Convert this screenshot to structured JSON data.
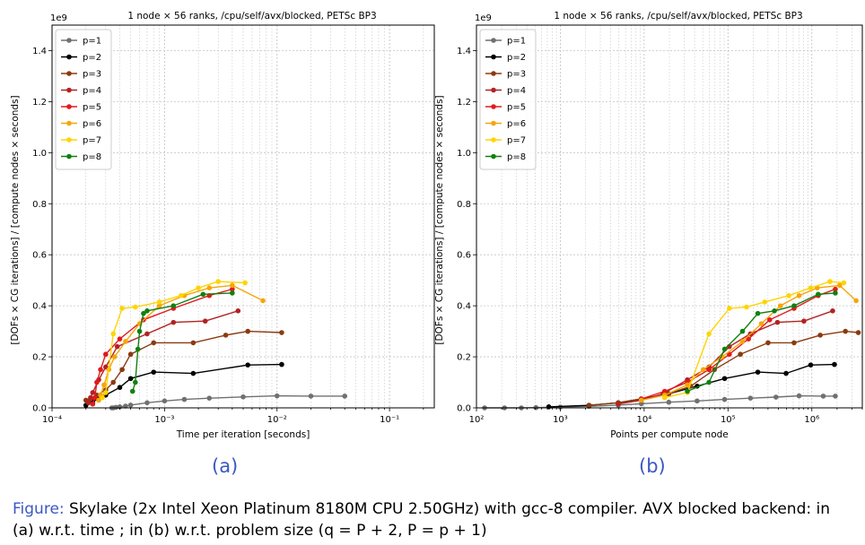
{
  "caption": {
    "label": "Figure:",
    "text": "Skylake (2x Intel Xeon Platinum 8180M CPU 2.50GHz) with gcc-8 compiler. AVX blocked backend: in (a) w.r.t. time ; in (b) w.r.t. problem size (q = P + 2, P = p + 1)"
  },
  "subfigure_labels": [
    "(a)",
    "(b)"
  ],
  "colors": {
    "p=1": "#707070",
    "p=2": "#000000",
    "p=3": "#8b3a0f",
    "p=4": "#b22222",
    "p=5": "#e31a1c",
    "p=6": "#f5a60a",
    "p=7": "#ffd400",
    "p=8": "#108010"
  },
  "chart_data": [
    {
      "type": "line",
      "title": "1 node × 56 ranks, /cpu/self/avx/blocked, PETSc BP3",
      "xlabel": "Time per iteration [seconds]",
      "ylabel": "[DOFs × CG iterations] / [compute nodes × seconds]",
      "y_offset_label": "1e9",
      "x_scale": "log",
      "xlim": [
        0.0001,
        0.25
      ],
      "ylim": [
        0,
        1.5
      ],
      "x_ticks": [
        0.0001,
        0.001,
        0.01,
        0.1
      ],
      "x_tick_labels": [
        "10⁻⁴",
        "10⁻³",
        "10⁻²",
        "10⁻¹"
      ],
      "y_ticks": [
        0,
        0.2,
        0.4,
        0.6,
        0.8,
        1.0,
        1.2,
        1.4
      ],
      "y_tick_labels": [
        "0.0",
        "0.2",
        "0.4",
        "0.6",
        "0.8",
        "1.0",
        "1.2",
        "1.4"
      ],
      "grid": true,
      "legend": "upper-left",
      "series": [
        {
          "name": "p=1",
          "x": [
            0.00034,
            0.00035,
            0.00037,
            0.0004,
            0.00045,
            0.0005,
            0.0007,
            0.001,
            0.0015,
            0.0025,
            0.005,
            0.01,
            0.02,
            0.04
          ],
          "y": [
            0.0,
            0.0,
            0.002,
            0.004,
            0.007,
            0.011,
            0.02,
            0.027,
            0.033,
            0.038,
            0.043,
            0.047,
            0.046,
            0.046
          ]
        },
        {
          "name": "p=2",
          "x": [
            0.0002,
            0.00021,
            0.00023,
            0.00026,
            0.0003,
            0.0004,
            0.0005,
            0.0008,
            0.0018,
            0.0055,
            0.011
          ],
          "y": [
            0.01,
            0.02,
            0.025,
            0.035,
            0.05,
            0.08,
            0.115,
            0.14,
            0.135,
            0.168,
            0.17
          ]
        },
        {
          "name": "p=3",
          "x": [
            0.0002,
            0.00022,
            0.00025,
            0.0003,
            0.00035,
            0.00042,
            0.0005,
            0.0008,
            0.0018,
            0.0035,
            0.0055,
            0.011
          ],
          "y": [
            0.03,
            0.035,
            0.05,
            0.07,
            0.1,
            0.15,
            0.21,
            0.255,
            0.255,
            0.285,
            0.3,
            0.295
          ]
        },
        {
          "name": "p=4",
          "x": [
            0.00021,
            0.00022,
            0.00023,
            0.00026,
            0.0003,
            0.00038,
            0.0007,
            0.0012,
            0.0023,
            0.0045
          ],
          "y": [
            0.02,
            0.04,
            0.06,
            0.11,
            0.16,
            0.24,
            0.29,
            0.335,
            0.34,
            0.38
          ]
        },
        {
          "name": "p=5",
          "x": [
            0.00023,
            0.00024,
            0.00025,
            0.00027,
            0.0003,
            0.0004,
            0.00065,
            0.0012,
            0.0025,
            0.004
          ],
          "y": [
            0.015,
            0.04,
            0.1,
            0.15,
            0.21,
            0.27,
            0.345,
            0.39,
            0.44,
            0.465
          ]
        },
        {
          "name": "p=6",
          "x": [
            0.00026,
            0.00027,
            0.00029,
            0.00032,
            0.00036,
            0.00045,
            0.0006,
            0.0009,
            0.0015,
            0.0025,
            0.004,
            0.0075
          ],
          "y": [
            0.03,
            0.05,
            0.09,
            0.15,
            0.2,
            0.26,
            0.33,
            0.4,
            0.44,
            0.47,
            0.48,
            0.42
          ]
        },
        {
          "name": "p=7",
          "x": [
            0.00028,
            0.0003,
            0.00035,
            0.00042,
            0.00055,
            0.0009,
            0.0014,
            0.002,
            0.003,
            0.0052
          ],
          "y": [
            0.04,
            0.06,
            0.29,
            0.39,
            0.395,
            0.415,
            0.44,
            0.47,
            0.495,
            0.49
          ]
        },
        {
          "name": "p=8",
          "x": [
            0.00052,
            0.00055,
            0.00058,
            0.0006,
            0.00065,
            0.0007,
            0.0012,
            0.0022,
            0.004
          ],
          "y": [
            0.065,
            0.1,
            0.23,
            0.3,
            0.37,
            0.38,
            0.4,
            0.445,
            0.45
          ]
        }
      ]
    },
    {
      "type": "line",
      "title": "1 node × 56 ranks, /cpu/self/avx/blocked, PETSc BP3",
      "xlabel": "Points per compute node",
      "ylabel": "[DOFs × CG iterations] / [compute nodes × seconds]",
      "y_offset_label": "1e9",
      "x_scale": "log",
      "xlim": [
        100,
        4000000
      ],
      "ylim": [
        0,
        1.5
      ],
      "x_ticks": [
        100,
        1000,
        10000,
        100000,
        1000000
      ],
      "x_tick_labels": [
        "10²",
        "10³",
        "10⁴",
        "10⁵",
        "10⁶"
      ],
      "y_ticks": [
        0,
        0.2,
        0.4,
        0.6,
        0.8,
        1.0,
        1.2,
        1.4
      ],
      "y_tick_labels": [
        "0.0",
        "0.2",
        "0.4",
        "0.6",
        "0.8",
        "1.0",
        "1.2",
        "1.4"
      ],
      "grid": true,
      "legend": "upper-left",
      "series": [
        {
          "name": "p=1",
          "x": [
            125,
            216,
            343,
            512,
            1000,
            2197,
            4913,
            9261,
            19683,
            42875,
            91125,
            185193,
            373248,
            704969,
            1367631,
            1906624
          ],
          "y": [
            0.0,
            0.0,
            0.0,
            0.001,
            0.003,
            0.006,
            0.011,
            0.016,
            0.022,
            0.027,
            0.033,
            0.038,
            0.042,
            0.047,
            0.046,
            0.046
          ]
        },
        {
          "name": "p=2",
          "x": [
            729,
            2197,
            4913,
            9261,
            19683,
            42875,
            91125,
            226981,
            493039,
            970299,
            1860867
          ],
          "y": [
            0.004,
            0.01,
            0.02,
            0.035,
            0.055,
            0.085,
            0.115,
            0.14,
            0.135,
            0.168,
            0.17
          ]
        },
        {
          "name": "p=3",
          "x": [
            2197,
            4913,
            9261,
            19683,
            35937,
            68921,
            140608,
            300763,
            614125,
            1259712,
            2515456,
            3581577
          ],
          "y": [
            0.01,
            0.02,
            0.035,
            0.055,
            0.085,
            0.15,
            0.21,
            0.255,
            0.255,
            0.285,
            0.3,
            0.295
          ]
        },
        {
          "name": "p=4",
          "x": [
            4913,
            9261,
            16807,
            32768,
            59319,
            103823,
            185193,
            389017,
            804357,
            1771561
          ],
          "y": [
            0.015,
            0.03,
            0.055,
            0.11,
            0.16,
            0.24,
            0.29,
            0.335,
            0.34,
            0.38
          ]
        },
        {
          "name": "p=5",
          "x": [
            9261,
            17576,
            32768,
            59319,
            103823,
            175616,
            314432,
            614125,
            1191016,
            1906624
          ],
          "y": [
            0.035,
            0.065,
            0.1,
            0.15,
            0.21,
            0.27,
            0.345,
            0.39,
            0.44,
            0.465
          ]
        },
        {
          "name": "p=6",
          "x": [
            9261,
            17576,
            32768,
            50653,
            85184,
            148877,
            250047,
            421875,
            704969,
            1157625,
            2146689,
            3375000
          ],
          "y": [
            0.03,
            0.05,
            0.09,
            0.15,
            0.2,
            0.26,
            0.33,
            0.4,
            0.44,
            0.47,
            0.48,
            0.42
          ]
        },
        {
          "name": "p=7",
          "x": [
            17576,
            32768,
            59319,
            103823,
            166375,
            274625,
            531441,
            970299,
            1643032,
            2406104
          ],
          "y": [
            0.04,
            0.06,
            0.29,
            0.39,
            0.395,
            0.415,
            0.44,
            0.47,
            0.495,
            0.49
          ]
        },
        {
          "name": "p=8",
          "x": [
            32768,
            59319,
            91125,
            148877,
            226981,
            357911,
            614125,
            1191016,
            1906624
          ],
          "y": [
            0.065,
            0.1,
            0.23,
            0.3,
            0.37,
            0.38,
            0.4,
            0.445,
            0.45
          ]
        }
      ]
    }
  ]
}
